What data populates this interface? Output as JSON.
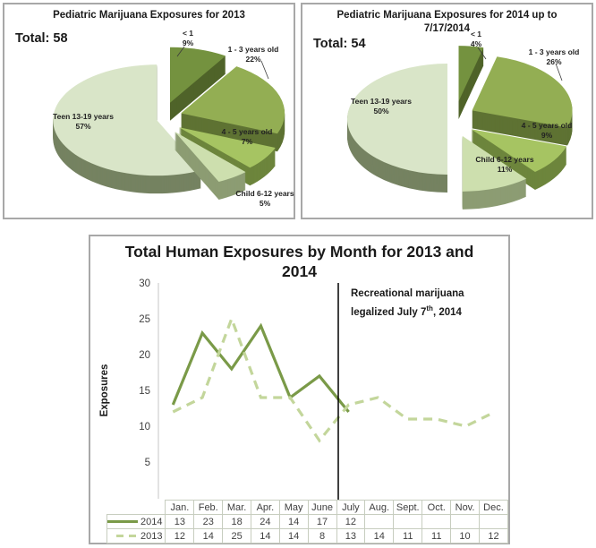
{
  "chart_data": [
    {
      "type": "pie",
      "title": "Pediatric Marijuana Exposures for 2013",
      "total": 58,
      "total_label": "Total: 58",
      "slices": [
        {
          "label": "< 1",
          "pct": 9,
          "color": "#74923f",
          "side_color": "#4f6329"
        },
        {
          "label": "1 - 3 years old",
          "pct": 22,
          "color": "#93ae53",
          "side_color": "#5e7233"
        },
        {
          "label": "4 - 5 years old",
          "pct": 7,
          "color": "#a6c462",
          "side_color": "#6d853c"
        },
        {
          "label": "Child 6-12 years",
          "pct": 5,
          "color": "#cddfae",
          "side_color": "#8c9c73"
        },
        {
          "label": "Teen 13-19 years",
          "pct": 57,
          "color": "#d9e5c8",
          "side_color": "#758261"
        }
      ]
    },
    {
      "type": "pie",
      "title": "Pediatric Marijuana Exposures for 2014 up to 7/17/2014",
      "total": 54,
      "total_label": "Total: 54",
      "slices": [
        {
          "label": "< 1",
          "pct": 4,
          "color": "#74923f",
          "side_color": "#4f6329"
        },
        {
          "label": "1 - 3 years old",
          "pct": 26,
          "color": "#93ae53",
          "side_color": "#5e7233"
        },
        {
          "label": "4 - 5 years old",
          "pct": 9,
          "color": "#a6c462",
          "side_color": "#6d853c"
        },
        {
          "label": "Child 6-12 years",
          "pct": 11,
          "color": "#cddfae",
          "side_color": "#8c9c73"
        },
        {
          "label": "Teen 13-19 years",
          "pct": 50,
          "color": "#d9e5c8",
          "side_color": "#758261"
        }
      ]
    },
    {
      "type": "line",
      "title": "Total Human Exposures by Month for 2013 and 2014",
      "ylabel": "Exposures",
      "ylim": [
        0,
        30
      ],
      "yticks": [
        5,
        10,
        15,
        20,
        25,
        30
      ],
      "grid": false,
      "legend_position": "table-left",
      "categories": [
        "Jan.",
        "Feb.",
        "Mar.",
        "Apr.",
        "May",
        "June",
        "July",
        "Aug.",
        "Sept.",
        "Oct.",
        "Nov.",
        "Dec."
      ],
      "series": [
        {
          "name": "2014",
          "color": "#7a9a48",
          "style": "solid",
          "values": [
            13,
            23,
            18,
            24,
            14,
            17,
            12,
            null,
            null,
            null,
            null,
            null
          ]
        },
        {
          "name": "2013",
          "color": "#c3d69b",
          "style": "dashed",
          "values": [
            12,
            14,
            25,
            14,
            14,
            8,
            13,
            14,
            11,
            11,
            10,
            12
          ]
        }
      ],
      "vline": {
        "between": [
          "June",
          "July"
        ],
        "color": "#000000"
      },
      "annotation": {
        "line1": "Recreational marijuana",
        "line2_pre": "legalized July 7",
        "line2_sup": "th",
        "line2_post": ", 2014"
      }
    }
  ]
}
